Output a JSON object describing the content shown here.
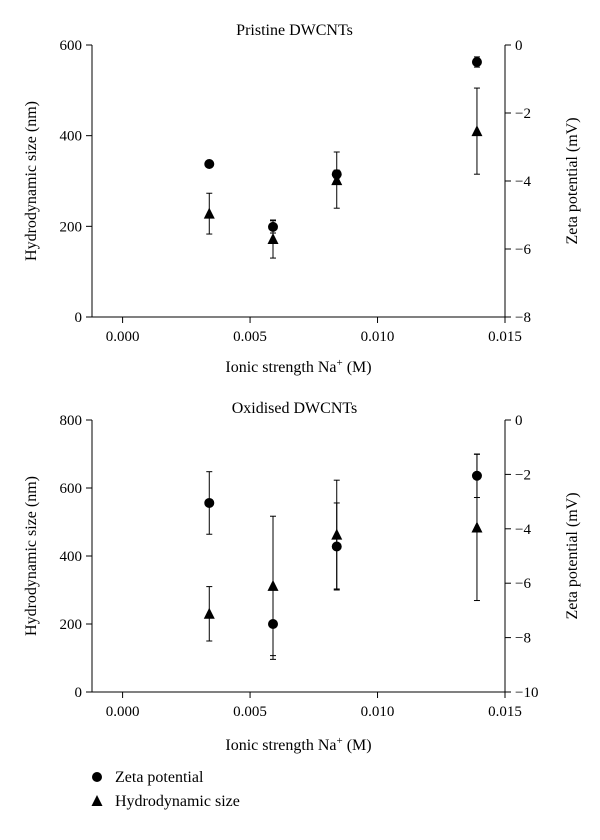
{
  "legend": {
    "items": [
      {
        "label": "Zeta potential",
        "marker": "circle"
      },
      {
        "label": "Hydrodynamic size",
        "marker": "triangle"
      }
    ]
  },
  "chart_data": [
    {
      "type": "scatter",
      "title": "Pristine DWCNTs",
      "xlabel": "Ionic strength Na+ (M)",
      "ylabel_left": "Hydrodynamic size (nm)",
      "ylabel_right": "Zeta potential (mV)",
      "xlim": [
        -0.0012,
        0.015
      ],
      "xticks": [
        "0.000",
        "0.005",
        "0.010",
        "0.015"
      ],
      "ylim_left": [
        0,
        600
      ],
      "yticks_left": [
        "0",
        "200",
        "400",
        "600"
      ],
      "ylim_right": [
        -8,
        0
      ],
      "yticks_right": [
        "0",
        "-2",
        "-4",
        "-6",
        "-8"
      ],
      "series": [
        {
          "name": "Zeta potential",
          "axis": "right",
          "marker": "circle",
          "x": [
            0.0034,
            0.0059,
            0.0084,
            0.0139
          ],
          "y": [
            -3.5,
            -5.35,
            -3.8,
            -0.5
          ],
          "err": [
            0,
            0.18,
            0.12,
            0.15
          ]
        },
        {
          "name": "Hydrodynamic size",
          "axis": "left",
          "marker": "triangle",
          "x": [
            0.0034,
            0.0059,
            0.0084,
            0.0139
          ],
          "y": [
            228,
            172,
            302,
            410
          ],
          "err": [
            45,
            42,
            62,
            95
          ]
        }
      ]
    },
    {
      "type": "scatter",
      "title": "Oxidised DWCNTs",
      "xlabel": "Ionic strength Na+ (M)",
      "ylabel_left": "Hydrodynamic size (nm)",
      "ylabel_right": "Zeta potential (mV)",
      "xlim": [
        -0.0012,
        0.015
      ],
      "xticks": [
        "0.000",
        "0.005",
        "0.010",
        "0.015"
      ],
      "ylim_left": [
        0,
        800
      ],
      "yticks_left": [
        "0",
        "200",
        "400",
        "600",
        "800"
      ],
      "ylim_right": [
        -10,
        0
      ],
      "yticks_right": [
        "0",
        "-2",
        "-4",
        "-6",
        "-8",
        "-10"
      ],
      "series": [
        {
          "name": "Zeta potential",
          "axis": "right",
          "marker": "circle",
          "x": [
            0.0034,
            0.0059,
            0.0084,
            0.0139
          ],
          "y": [
            -3.05,
            -7.5,
            -4.65,
            -2.05
          ],
          "err": [
            1.15,
            1.3,
            1.6,
            0.8
          ]
        },
        {
          "name": "Hydrodynamic size",
          "axis": "left",
          "marker": "triangle",
          "x": [
            0.0034,
            0.0059,
            0.0084,
            0.0139
          ],
          "y": [
            230,
            312,
            463,
            484
          ],
          "err": [
            80,
            205,
            160,
            215
          ]
        }
      ]
    }
  ]
}
